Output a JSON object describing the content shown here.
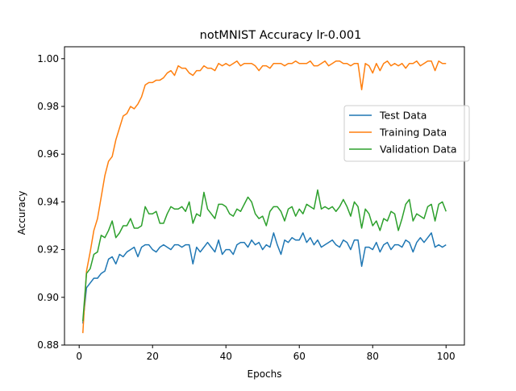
{
  "chart_data": {
    "type": "line",
    "title": "notMNIST Accuracy lr-0.001",
    "xlabel": "Epochs",
    "ylabel": "Accuracy",
    "xlim": [
      -4,
      105
    ],
    "ylim": [
      0.88,
      1.005
    ],
    "xticks": [
      0,
      20,
      40,
      60,
      80,
      100
    ],
    "yticks": [
      0.88,
      0.9,
      0.92,
      0.94,
      0.96,
      0.98,
      1.0
    ],
    "ytick_labels": [
      "0.88",
      "0.90",
      "0.92",
      "0.94",
      "0.96",
      "0.98",
      "1.00"
    ],
    "grid": false,
    "legend_placement": "center-right",
    "x": [
      1,
      2,
      3,
      4,
      5,
      6,
      7,
      8,
      9,
      10,
      11,
      12,
      13,
      14,
      15,
      16,
      17,
      18,
      19,
      20,
      21,
      22,
      23,
      24,
      25,
      26,
      27,
      28,
      29,
      30,
      31,
      32,
      33,
      34,
      35,
      36,
      37,
      38,
      39,
      40,
      41,
      42,
      43,
      44,
      45,
      46,
      47,
      48,
      49,
      50,
      51,
      52,
      53,
      54,
      55,
      56,
      57,
      58,
      59,
      60,
      61,
      62,
      63,
      64,
      65,
      66,
      67,
      68,
      69,
      70,
      71,
      72,
      73,
      74,
      75,
      76,
      77,
      78,
      79,
      80,
      81,
      82,
      83,
      84,
      85,
      86,
      87,
      88,
      89,
      90,
      91,
      92,
      93,
      94,
      95,
      96,
      97,
      98,
      99,
      100
    ],
    "series": [
      {
        "name": "Test Data",
        "color": "#1f77b4",
        "values": [
          0.889,
          0.904,
          0.906,
          0.908,
          0.908,
          0.91,
          0.911,
          0.916,
          0.917,
          0.914,
          0.918,
          0.917,
          0.919,
          0.92,
          0.921,
          0.917,
          0.921,
          0.922,
          0.922,
          0.92,
          0.919,
          0.921,
          0.922,
          0.921,
          0.92,
          0.922,
          0.922,
          0.921,
          0.922,
          0.922,
          0.914,
          0.921,
          0.919,
          0.921,
          0.923,
          0.921,
          0.919,
          0.924,
          0.918,
          0.92,
          0.92,
          0.918,
          0.922,
          0.923,
          0.923,
          0.921,
          0.924,
          0.922,
          0.923,
          0.92,
          0.922,
          0.921,
          0.927,
          0.922,
          0.918,
          0.924,
          0.923,
          0.925,
          0.924,
          0.924,
          0.927,
          0.923,
          0.925,
          0.922,
          0.924,
          0.921,
          0.922,
          0.923,
          0.924,
          0.922,
          0.921,
          0.924,
          0.923,
          0.92,
          0.924,
          0.924,
          0.913,
          0.921,
          0.921,
          0.92,
          0.923,
          0.919,
          0.922,
          0.923,
          0.92,
          0.922,
          0.922,
          0.921,
          0.924,
          0.923,
          0.919,
          0.923,
          0.925,
          0.923,
          0.925,
          0.927,
          0.921,
          0.922,
          0.921,
          0.922
        ]
      },
      {
        "name": "Training Data",
        "color": "#ff7f0e",
        "values": [
          0.885,
          0.911,
          0.919,
          0.928,
          0.933,
          0.942,
          0.951,
          0.957,
          0.959,
          0.966,
          0.971,
          0.976,
          0.977,
          0.98,
          0.979,
          0.981,
          0.984,
          0.989,
          0.99,
          0.99,
          0.991,
          0.991,
          0.992,
          0.994,
          0.995,
          0.993,
          0.997,
          0.996,
          0.996,
          0.994,
          0.993,
          0.995,
          0.995,
          0.997,
          0.996,
          0.996,
          0.995,
          0.998,
          0.997,
          0.998,
          0.997,
          0.998,
          0.999,
          0.997,
          0.998,
          0.998,
          0.998,
          0.997,
          0.995,
          0.997,
          0.997,
          0.996,
          0.998,
          0.998,
          0.998,
          0.997,
          0.998,
          0.998,
          0.999,
          0.998,
          0.998,
          0.998,
          0.999,
          0.997,
          0.997,
          0.998,
          0.999,
          0.997,
          0.998,
          0.999,
          0.999,
          0.998,
          0.998,
          0.997,
          0.998,
          0.998,
          0.987,
          0.998,
          0.997,
          0.994,
          0.998,
          0.995,
          0.998,
          0.999,
          0.997,
          0.998,
          0.997,
          0.998,
          0.996,
          0.998,
          0.998,
          0.999,
          0.997,
          0.998,
          0.999,
          0.999,
          0.995,
          0.999,
          0.998,
          0.998
        ]
      },
      {
        "name": "Validation Data",
        "color": "#2ca02c",
        "values": [
          0.89,
          0.91,
          0.912,
          0.918,
          0.919,
          0.926,
          0.925,
          0.928,
          0.932,
          0.925,
          0.927,
          0.93,
          0.93,
          0.933,
          0.929,
          0.929,
          0.93,
          0.938,
          0.935,
          0.935,
          0.936,
          0.931,
          0.931,
          0.935,
          0.938,
          0.937,
          0.937,
          0.938,
          0.936,
          0.94,
          0.931,
          0.935,
          0.934,
          0.944,
          0.937,
          0.935,
          0.933,
          0.939,
          0.939,
          0.938,
          0.935,
          0.934,
          0.937,
          0.936,
          0.939,
          0.942,
          0.94,
          0.935,
          0.933,
          0.934,
          0.93,
          0.936,
          0.938,
          0.938,
          0.936,
          0.932,
          0.937,
          0.938,
          0.934,
          0.937,
          0.935,
          0.939,
          0.938,
          0.937,
          0.945,
          0.937,
          0.938,
          0.937,
          0.938,
          0.936,
          0.938,
          0.941,
          0.938,
          0.934,
          0.94,
          0.938,
          0.929,
          0.937,
          0.935,
          0.93,
          0.932,
          0.928,
          0.933,
          0.932,
          0.936,
          0.935,
          0.928,
          0.933,
          0.939,
          0.941,
          0.932,
          0.935,
          0.934,
          0.933,
          0.938,
          0.939,
          0.932,
          0.939,
          0.94,
          0.936
        ]
      }
    ]
  }
}
